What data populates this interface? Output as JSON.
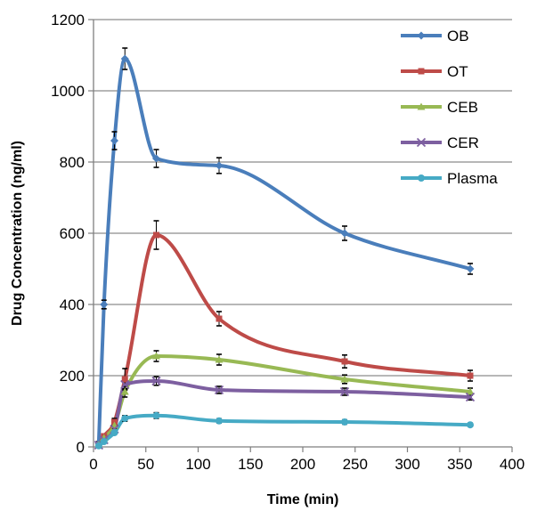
{
  "chart_data": {
    "type": "line",
    "xlabel": "Time (min)",
    "ylabel": "Drug Concentration (ng/ml)",
    "xlim": [
      0,
      400
    ],
    "ylim": [
      0,
      1200
    ],
    "xticks": [
      0,
      50,
      100,
      150,
      200,
      250,
      300,
      350,
      400
    ],
    "yticks": [
      0,
      200,
      400,
      600,
      800,
      1000,
      1200
    ],
    "grid": "horizontal",
    "legend_position": "top-right",
    "series": [
      {
        "name": "OB",
        "color": "#4a7ebb",
        "marker": "diamond",
        "x": [
          5,
          10,
          20,
          30,
          60,
          120,
          240,
          360
        ],
        "y": [
          10,
          400,
          860,
          1090,
          810,
          790,
          600,
          500
        ],
        "err": [
          5,
          12,
          25,
          30,
          25,
          22,
          20,
          15
        ]
      },
      {
        "name": "OT",
        "color": "#be4b48",
        "marker": "square",
        "x": [
          5,
          10,
          20,
          30,
          60,
          120,
          240,
          360
        ],
        "y": [
          5,
          30,
          70,
          190,
          595,
          360,
          240,
          200
        ],
        "err": [
          3,
          5,
          10,
          30,
          40,
          20,
          18,
          15
        ]
      },
      {
        "name": "CEB",
        "color": "#98b954",
        "marker": "triangle",
        "x": [
          5,
          10,
          20,
          30,
          60,
          120,
          240,
          360
        ],
        "y": [
          5,
          25,
          60,
          155,
          255,
          245,
          190,
          155
        ],
        "err": [
          3,
          5,
          8,
          15,
          15,
          15,
          12,
          10
        ]
      },
      {
        "name": "CER",
        "color": "#7d5fa0",
        "marker": "x",
        "x": [
          5,
          10,
          20,
          30,
          60,
          120,
          240,
          360
        ],
        "y": [
          5,
          20,
          50,
          175,
          185,
          160,
          155,
          140
        ],
        "err": [
          3,
          4,
          8,
          12,
          12,
          10,
          10,
          8
        ]
      },
      {
        "name": "Plasma",
        "color": "#46aac5",
        "marker": "circle",
        "x": [
          5,
          10,
          20,
          30,
          60,
          120,
          240,
          360
        ],
        "y": [
          3,
          15,
          40,
          80,
          88,
          73,
          70,
          62
        ],
        "err": [
          2,
          3,
          5,
          8,
          8,
          6,
          6,
          5
        ]
      }
    ]
  }
}
